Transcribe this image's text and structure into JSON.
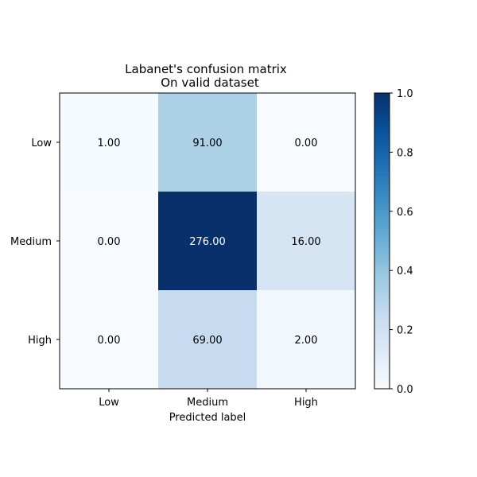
{
  "chart_data": {
    "type": "heatmap",
    "title": "Labanet's confusion matrix",
    "subtitle": "On valid dataset",
    "xlabel": "Predicted label",
    "ylabel": "",
    "x_categories": [
      "Low",
      "Medium",
      "High"
    ],
    "y_categories": [
      "Low",
      "Medium",
      "High"
    ],
    "values": [
      [
        1.0,
        91.0,
        0.0
      ],
      [
        0.0,
        276.0,
        16.0
      ],
      [
        0.0,
        69.0,
        2.0
      ]
    ],
    "value_labels": [
      [
        "1.00",
        "91.00",
        "0.00"
      ],
      [
        "0.00",
        "276.00",
        "16.00"
      ],
      [
        "0.00",
        "69.00",
        "2.00"
      ]
    ],
    "normalized_colors": [
      [
        0.01,
        0.33,
        0.0
      ],
      [
        0.0,
        1.0,
        0.17
      ],
      [
        0.0,
        0.25,
        0.03
      ]
    ],
    "colormap": "Blues",
    "colorbar": {
      "range": [
        0.0,
        1.0
      ],
      "ticks": [
        "0.0",
        "0.2",
        "0.4",
        "0.6",
        "0.8",
        "1.0"
      ]
    },
    "grid": false
  }
}
